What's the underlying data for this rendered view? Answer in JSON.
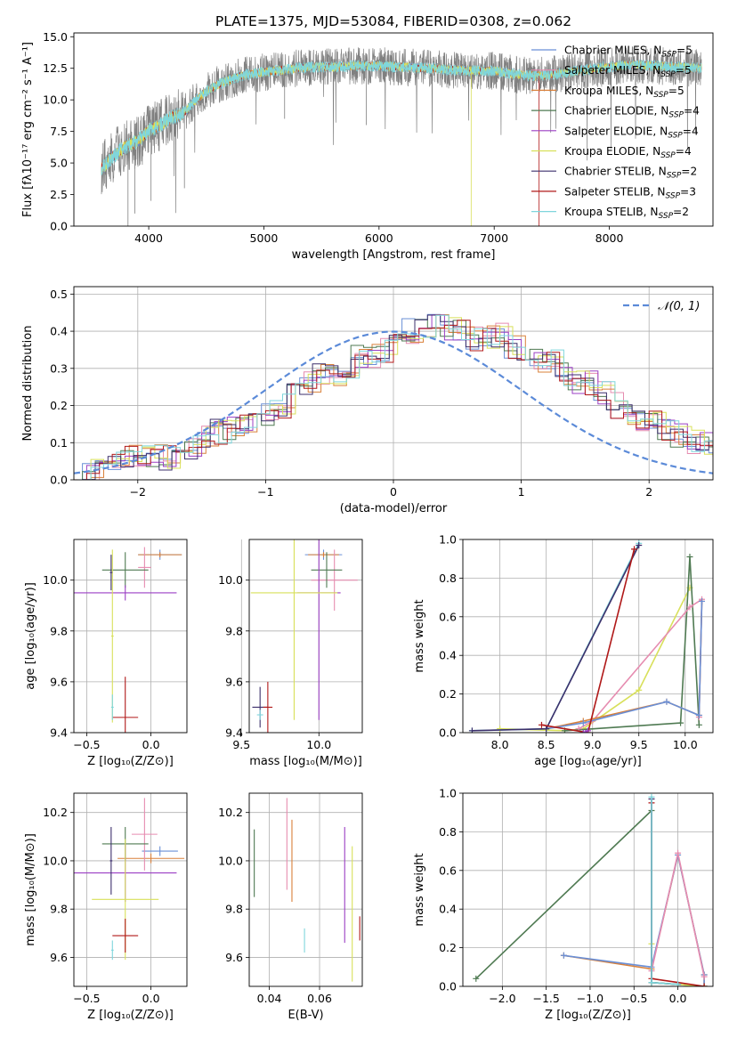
{
  "figure_title": "PLATE=1375, MJD=53084, FIBERID=0308, z=0.062",
  "colors": {
    "Chabrier MILES": "#6a8fd6",
    "Salpeter MILES": "#e68cb0",
    "Kroupa MILES": "#d9803a",
    "Chabrier ELODIE": "#4f7a52",
    "Salpeter ELODIE": "#9b3fc4",
    "Kroupa ELODIE": "#d8e05a",
    "Chabrier STELIB": "#3c2f6b",
    "Salpeter STELIB": "#b01818",
    "Kroupa STELIB": "#7fd6dc",
    "data": "#808080",
    "normal": "#5b8ad8"
  },
  "chart_data": [
    {
      "type": "line",
      "title": "PLATE=1375, MJD=53084, FIBERID=0308, z=0.062",
      "xlabel": "wavelength [Angstrom, rest frame]",
      "ylabel": "Flux [fλ10⁻¹⁷ erg cm⁻² s⁻¹ A⁻¹]",
      "xlim": [
        3350,
        8900
      ],
      "ylim": [
        0,
        15.3
      ],
      "xticks": [
        4000,
        5000,
        6000,
        7000,
        8000
      ],
      "yticks": [
        "0.0",
        "2.5",
        "5.0",
        "7.5",
        "10.0",
        "12.5",
        "15.0"
      ],
      "grid": false,
      "legend_position": "top-right",
      "legend": [
        {
          "name": "Chabrier MILES",
          "sub": "SSP",
          "n": "5"
        },
        {
          "name": "Salpeter MILES",
          "sub": "SSP",
          "n": "5"
        },
        {
          "name": "Kroupa MILES",
          "sub": "SSP",
          "n": "5"
        },
        {
          "name": "Chabrier ELODIE",
          "sub": "SSP",
          "n": "4"
        },
        {
          "name": "Salpeter ELODIE",
          "sub": "SSP",
          "n": "4"
        },
        {
          "name": "Kroupa ELODIE",
          "sub": "SSP",
          "n": "4"
        },
        {
          "name": "Chabrier STELIB",
          "sub": "SSP",
          "n": "2"
        },
        {
          "name": "Salpeter STELIB",
          "sub": "SSP",
          "n": "3"
        },
        {
          "name": "Kroupa STELIB",
          "sub": "SSP",
          "n": "2"
        }
      ],
      "model_curve": {
        "x": [
          3600,
          3700,
          3800,
          3900,
          4000,
          4100,
          4200,
          4300,
          4400,
          4500,
          4600,
          4800,
          5000,
          5200,
          5400,
          5600,
          5800,
          6000,
          6200,
          6400,
          6600,
          6800,
          7000,
          7200,
          7400,
          7600,
          7800,
          8000,
          8200,
          8400,
          8600,
          8800
        ],
        "y": [
          4.6,
          5.6,
          6.3,
          6.7,
          7.6,
          8.0,
          8.6,
          8.9,
          9.9,
          10.7,
          11.2,
          11.9,
          12.2,
          12.4,
          12.6,
          12.6,
          12.7,
          12.7,
          12.6,
          12.5,
          12.4,
          12.3,
          12.3,
          12.0,
          11.9,
          12.1,
          12.4,
          12.6,
          12.8,
          12.7,
          12.6,
          12.5
        ]
      },
      "series_styles": [
        {
          "name": "data",
          "color": "#808080",
          "noise": 1.5
        },
        {
          "name": "Chabrier MILES",
          "color": "#6a8fd6",
          "noise": 0.35
        },
        {
          "name": "Kroupa MILES",
          "color": "#d9803a",
          "noise": 0.35
        },
        {
          "name": "Salpeter STELIB",
          "color": "#b01818",
          "noise": 0.3
        },
        {
          "name": "Kroupa ELODIE",
          "color": "#d8e05a",
          "noise": 0.35
        },
        {
          "name": "Kroupa STELIB",
          "color": "#7fd6dc",
          "noise": 0.45
        }
      ]
    },
    {
      "type": "line",
      "xlabel": "(data-model)/error",
      "ylabel": "Normed distribution",
      "xlim": [
        -2.5,
        2.5
      ],
      "ylim": [
        0,
        0.52
      ],
      "xticks": [
        "−2",
        "−1",
        "0",
        "1",
        "2"
      ],
      "yticks": [
        "0.0",
        "0.1",
        "0.2",
        "0.3",
        "0.4",
        "0.5"
      ],
      "grid": true,
      "legend_position": "top-right",
      "legend_label": "𝒩(0, 1)",
      "bin_edges_start": -2.5,
      "bin_width": 0.1,
      "hist_base": [
        0.02,
        0.025,
        0.03,
        0.04,
        0.06,
        0.06,
        0.07,
        0.06,
        0.07,
        0.09,
        0.11,
        0.13,
        0.14,
        0.14,
        0.16,
        0.18,
        0.2,
        0.23,
        0.26,
        0.28,
        0.28,
        0.3,
        0.33,
        0.33,
        0.35,
        0.38,
        0.4,
        0.4,
        0.41,
        0.41,
        0.4,
        0.38,
        0.38,
        0.39,
        0.36,
        0.35,
        0.32,
        0.32,
        0.28,
        0.26,
        0.26,
        0.23,
        0.2,
        0.18,
        0.16,
        0.15,
        0.14,
        0.12,
        0.1,
        0.1,
        0.09,
        0.08,
        0.07,
        0.06,
        0.05,
        0.05,
        0.04,
        0.03,
        0.025,
        0.02,
        0.02
      ],
      "normal": {
        "mu": 0,
        "sigma": 1
      }
    },
    {
      "type": "scatter",
      "xlabel": "Z [log₁₀(Z/Z⊙)]",
      "ylabel": "age  [log₁₀(age/yr)]",
      "xlim": [
        -0.6,
        0.28
      ],
      "ylim": [
        9.4,
        10.16
      ],
      "xticks": [
        "−0.5",
        "0.0"
      ],
      "xtick_values": [
        -0.5,
        0.0
      ],
      "yticks": [
        "9.4",
        "9.6",
        "9.8",
        "10.0"
      ],
      "ytick_values": [
        9.4,
        9.6,
        9.8,
        10.0
      ],
      "grid": true,
      "points": [
        {
          "series": "Chabrier MILES",
          "x": 0.07,
          "xerr": 0.17,
          "y": 10.1,
          "yerr": 0.02
        },
        {
          "series": "Kroupa MILES",
          "x": 0.07,
          "xerr": 0.17,
          "y": 10.1,
          "yerr": 0.01
        },
        {
          "series": "Salpeter MILES",
          "x": -0.05,
          "xerr": 0.05,
          "y": 10.05,
          "yerr": 0.08
        },
        {
          "series": "Chabrier ELODIE",
          "x": -0.2,
          "xerr": 0.18,
          "y": 10.04,
          "yerr": 0.07
        },
        {
          "series": "Salpeter ELODIE",
          "x": -0.2,
          "xerr": 0.4,
          "y": 9.95,
          "yerr": 0.03
        },
        {
          "series": "Kroupa ELODIE",
          "x": -0.3,
          "xerr": 0.01,
          "y": 9.78,
          "yerr": 0.34
        },
        {
          "series": "Chabrier STELIB",
          "x": -0.31,
          "xerr": 0.01,
          "y": 10.03,
          "yerr": 0.07
        },
        {
          "series": "Salpeter STELIB",
          "x": -0.2,
          "xerr": 0.1,
          "y": 9.46,
          "yerr": 0.16
        },
        {
          "series": "Kroupa STELIB",
          "x": -0.3,
          "xerr": 0.01,
          "y": 9.5,
          "yerr": 0.05
        }
      ]
    },
    {
      "type": "scatter",
      "xlabel": "mass [log₁₀(M/M⊙)]",
      "xlim": [
        9.55,
        10.28
      ],
      "ylim": [
        9.4,
        10.16
      ],
      "xticks": [
        "9.5",
        "10.0"
      ],
      "xtick_values": [
        9.5,
        10.0
      ],
      "yticks": [
        "9.4",
        "9.6",
        "9.8",
        "10.0"
      ],
      "ytick_values": [
        9.4,
        9.6,
        9.8,
        10.0
      ],
      "grid": true,
      "points": [
        {
          "series": "Chabrier MILES",
          "x": 10.03,
          "xerr": 0.12,
          "y": 10.1,
          "yerr": 0.02
        },
        {
          "series": "Kroupa MILES",
          "x": 10.03,
          "xerr": 0.1,
          "y": 10.1,
          "yerr": 0.01
        },
        {
          "series": "Salpeter MILES",
          "x": 10.1,
          "xerr": 0.15,
          "y": 10.0,
          "yerr": 0.12
        },
        {
          "series": "Chabrier ELODIE",
          "x": 10.05,
          "xerr": 0.1,
          "y": 10.04,
          "yerr": 0.07
        },
        {
          "series": "Salpeter ELODIE",
          "x": 10.0,
          "xerr": 0.14,
          "y": 9.95,
          "yerr": 0.5
        },
        {
          "series": "Kroupa ELODIE",
          "x": 9.84,
          "xerr": 0.28,
          "y": 9.95,
          "yerr": 0.5
        },
        {
          "series": "Chabrier STELIB",
          "x": 9.62,
          "xerr": 0.05,
          "y": 9.5,
          "yerr": 0.08
        },
        {
          "series": "Salpeter STELIB",
          "x": 9.67,
          "xerr": 0.03,
          "y": 9.5,
          "yerr": 0.1
        },
        {
          "series": "Kroupa STELIB",
          "x": 9.62,
          "xerr": 0.02,
          "y": 9.47,
          "yerr": 0.02
        }
      ]
    },
    {
      "type": "line",
      "xlabel": "age  [log₁₀(age/yr)]",
      "ylabel": "mass weight",
      "xlim": [
        7.6,
        10.3
      ],
      "ylim": [
        0,
        1.0
      ],
      "xticks": [
        "8.0",
        "8.5",
        "9.0",
        "9.5",
        "10.0"
      ],
      "xtick_values": [
        8.0,
        8.5,
        9.0,
        9.5,
        10.0
      ],
      "yticks": [
        "0.0",
        "0.2",
        "0.4",
        "0.6",
        "0.8",
        "1.0"
      ],
      "ytick_values": [
        0,
        0.2,
        0.4,
        0.6,
        0.8,
        1.0
      ],
      "grid": true,
      "series": [
        {
          "name": "Kroupa ELODIE",
          "x": [
            8.0,
            8.7,
            8.9,
            9.5,
            10.05
          ],
          "y": [
            0.02,
            0.01,
            0.02,
            0.22,
            0.75
          ]
        },
        {
          "name": "Chabrier ELODIE",
          "x": [
            8.7,
            9.95,
            10.05,
            10.15
          ],
          "y": [
            0.01,
            0.05,
            0.91,
            0.04
          ]
        },
        {
          "name": "Salpeter MILES",
          "x": [
            8.85,
            9.0,
            10.05,
            10.18,
            10.15
          ],
          "y": [
            0.02,
            0.06,
            0.65,
            0.69,
            0.08
          ]
        },
        {
          "name": "Kroupa MILES",
          "x": [
            8.5,
            8.9,
            9.8,
            10.15,
            10.18
          ],
          "y": [
            0.02,
            0.06,
            0.16,
            0.09,
            0.68
          ]
        },
        {
          "name": "Chabrier MILES",
          "x": [
            8.5,
            8.9,
            9.8,
            10.15,
            10.18
          ],
          "y": [
            0.02,
            0.05,
            0.16,
            0.09,
            0.68
          ]
        },
        {
          "name": "Kroupa STELIB",
          "x": [
            7.7,
            8.5,
            9.5
          ],
          "y": [
            0.01,
            0.02,
            0.98
          ]
        },
        {
          "name": "Chabrier STELIB",
          "x": [
            7.7,
            8.5,
            9.5
          ],
          "y": [
            0.01,
            0.02,
            0.97
          ]
        },
        {
          "name": "Salpeter STELIB",
          "x": [
            8.45,
            8.95,
            9.45
          ],
          "y": [
            0.04,
            0.0,
            0.95
          ]
        },
        {
          "name": "Salpeter ELODIE",
          "x": [
            8.9,
            8.95
          ],
          "y": [
            0.0,
            0.01
          ]
        }
      ]
    },
    {
      "type": "scatter",
      "xlabel": "Z [log₁₀(Z/Z⊙)]",
      "ylabel": "mass [log₁₀(M/M⊙)]",
      "xlim": [
        -0.6,
        0.28
      ],
      "ylim": [
        9.48,
        10.28
      ],
      "xticks": [
        "−0.5",
        "0.0"
      ],
      "xtick_values": [
        -0.5,
        0.0
      ],
      "yticks": [
        "9.6",
        "9.8",
        "10.0",
        "10.2"
      ],
      "ytick_values": [
        9.6,
        9.8,
        10.0,
        10.2
      ],
      "grid": true,
      "points": [
        {
          "series": "Chabrier MILES",
          "x": 0.07,
          "xerr": 0.14,
          "y": 10.04,
          "yerr": 0.02
        },
        {
          "series": "Kroupa MILES",
          "x": 0.0,
          "xerr": 0.26,
          "y": 10.01,
          "yerr": 0.02
        },
        {
          "series": "Salpeter MILES",
          "x": -0.05,
          "xerr": 0.1,
          "y": 10.11,
          "yerr": 0.15
        },
        {
          "series": "Chabrier ELODIE",
          "x": -0.2,
          "xerr": 0.18,
          "y": 10.07,
          "yerr": 0.07
        },
        {
          "series": "Salpeter ELODIE",
          "x": -0.2,
          "xerr": 0.4,
          "y": 9.95,
          "yerr": 0.12
        },
        {
          "series": "Kroupa ELODIE",
          "x": -0.2,
          "xerr": 0.26,
          "y": 9.84,
          "yerr": 0.25
        },
        {
          "series": "Chabrier STELIB",
          "x": -0.31,
          "xerr": 0.01,
          "y": 10.0,
          "yerr": 0.14
        },
        {
          "series": "Salpeter STELIB",
          "x": -0.2,
          "xerr": 0.1,
          "y": 9.69,
          "yerr": 0.07
        },
        {
          "series": "Kroupa STELIB",
          "x": -0.3,
          "xerr": 0.01,
          "y": 9.63,
          "yerr": 0.04
        }
      ]
    },
    {
      "type": "scatter",
      "xlabel": "E(B-V)",
      "xlim": [
        0.032,
        0.077
      ],
      "ylim": [
        9.48,
        10.28
      ],
      "xticks": [
        "0.04",
        "0.06"
      ],
      "xtick_values": [
        0.04,
        0.06
      ],
      "yticks": [
        "9.6",
        "9.8",
        "10.0",
        "10.2"
      ],
      "ytick_values": [
        9.6,
        9.8,
        10.0,
        10.2
      ],
      "grid": true,
      "points": [
        {
          "series": "Chabrier ELODIE",
          "x": 0.034,
          "y": 9.99,
          "yerr": 0.14
        },
        {
          "series": "Salpeter MILES",
          "x": 0.047,
          "y": 10.07,
          "yerr": 0.19
        },
        {
          "series": "Kroupa MILES",
          "x": 0.049,
          "y": 10.0,
          "yerr": 0.17
        },
        {
          "series": "Kroupa STELIB",
          "x": 0.054,
          "y": 9.67,
          "yerr": 0.05
        },
        {
          "series": "Salpeter ELODIE",
          "x": 0.07,
          "y": 9.9,
          "yerr": 0.24
        },
        {
          "series": "Kroupa ELODIE",
          "x": 0.073,
          "y": 9.78,
          "yerr": 0.28
        },
        {
          "series": "Salpeter STELIB",
          "x": 0.076,
          "y": 9.72,
          "yerr": 0.05
        }
      ]
    },
    {
      "type": "line",
      "xlabel": "Z [log₁₀(Z/Z⊙)]",
      "ylabel": "mass weight",
      "xlim": [
        -2.45,
        0.4
      ],
      "ylim": [
        0,
        1.0
      ],
      "xticks": [
        "−2.0",
        "−1.5",
        "−1.0",
        "−0.5",
        "0.0"
      ],
      "xtick_values": [
        -2.0,
        -1.5,
        -1.0,
        -0.5,
        0.0
      ],
      "yticks": [
        "0.0",
        "0.2",
        "0.4",
        "0.6",
        "0.8",
        "1.0"
      ],
      "ytick_values": [
        0,
        0.2,
        0.4,
        0.6,
        0.8,
        1.0
      ],
      "grid": true,
      "series": [
        {
          "name": "Chabrier ELODIE",
          "x": [
            -2.3,
            -0.3,
            -0.3,
            0.3
          ],
          "y": [
            0.04,
            0.91,
            0.02,
            0.0
          ]
        },
        {
          "name": "Kroupa MILES",
          "x": [
            -1.3,
            -0.3,
            0.0,
            0.3,
            0.3
          ],
          "y": [
            0.16,
            0.09,
            0.68,
            0.06,
            0.0
          ]
        },
        {
          "name": "Chabrier MILES",
          "x": [
            -1.3,
            -0.3,
            0.0,
            0.3,
            0.3
          ],
          "y": [
            0.16,
            0.1,
            0.68,
            0.06,
            0.0
          ]
        },
        {
          "name": "Salpeter MILES",
          "x": [
            -0.3,
            0.0,
            0.3
          ],
          "y": [
            0.08,
            0.69,
            0.05
          ]
        },
        {
          "name": "Kroupa ELODIE",
          "x": [
            -0.3,
            -0.3,
            0.3
          ],
          "y": [
            0.22,
            0.02,
            0.0
          ]
        },
        {
          "name": "Salpeter STELIB",
          "x": [
            -0.3,
            -0.3,
            0.3
          ],
          "y": [
            0.95,
            0.04,
            0.0
          ]
        },
        {
          "name": "Chabrier STELIB",
          "x": [
            -0.3,
            -0.3,
            0.0
          ],
          "y": [
            0.97,
            0.02,
            0.01
          ]
        },
        {
          "name": "Kroupa STELIB",
          "x": [
            -0.3,
            -0.3,
            0.0
          ],
          "y": [
            0.98,
            0.02,
            0.01
          ]
        }
      ]
    }
  ]
}
